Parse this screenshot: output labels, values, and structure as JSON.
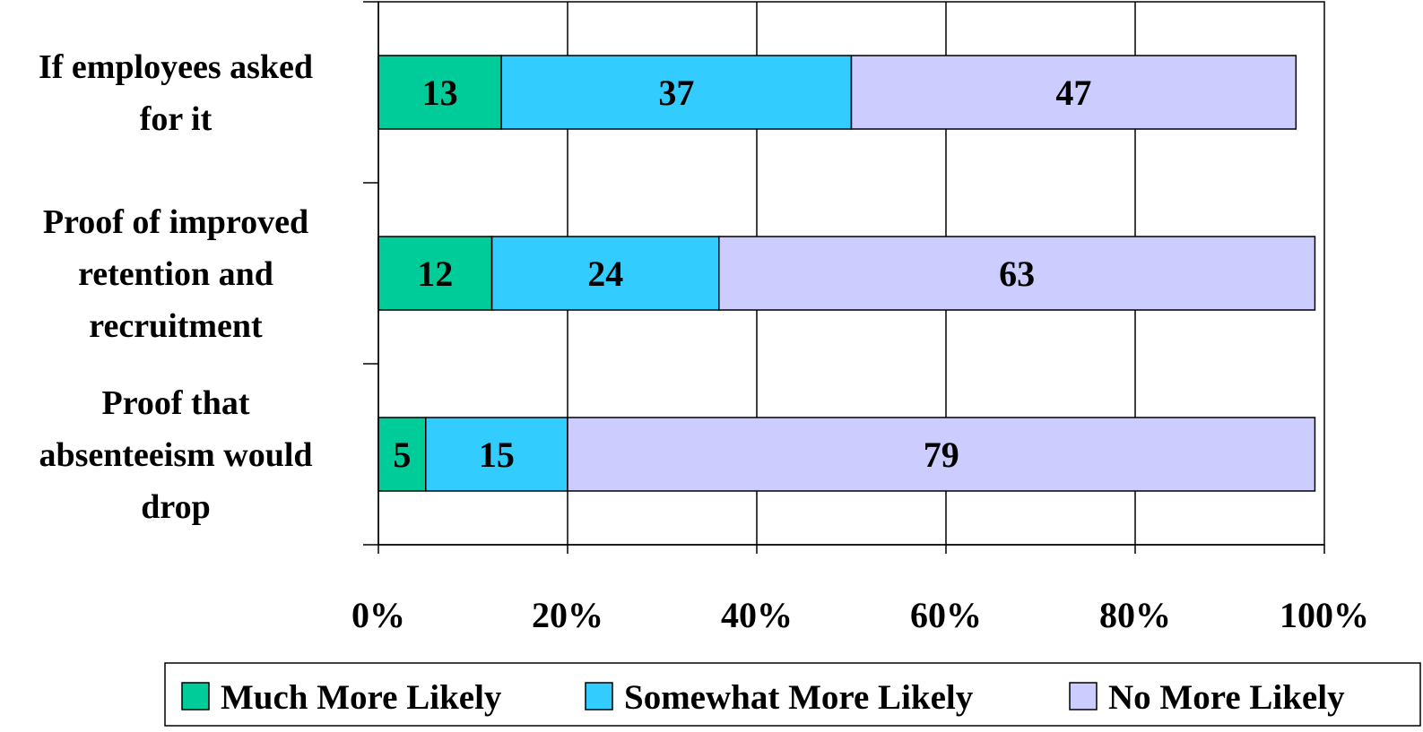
{
  "chart_data": {
    "type": "bar",
    "orientation": "horizontal",
    "stacked": true,
    "categories": [
      [
        "If employees asked",
        "for it"
      ],
      [
        "Proof of improved",
        "retention and",
        "recruitment"
      ],
      [
        "Proof that",
        "absenteeism would",
        "drop"
      ]
    ],
    "series": [
      {
        "name": "Much More Likely",
        "color": "#00CC99",
        "values": [
          13,
          12,
          5
        ]
      },
      {
        "name": "Somewhat More Likely",
        "color": "#33CCFF",
        "values": [
          37,
          24,
          15
        ]
      },
      {
        "name": "No More Likely",
        "color": "#CCCCFF",
        "values": [
          47,
          63,
          79
        ]
      }
    ],
    "x_ticks": [
      "0%",
      "20%",
      "40%",
      "60%",
      "80%",
      "100%"
    ],
    "xlim": [
      0,
      100
    ],
    "grid": true,
    "legend_position": "bottom",
    "title": "",
    "xlabel": "",
    "ylabel": ""
  }
}
